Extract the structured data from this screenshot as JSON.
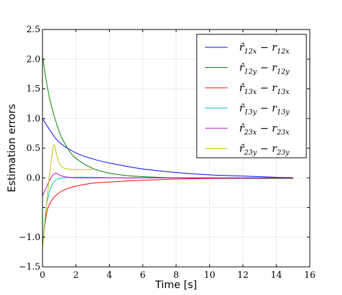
{
  "chart_data": {
    "type": "line",
    "xlabel": "Time [s]",
    "ylabel": "Estimation errors",
    "xlim": [
      0,
      16
    ],
    "ylim": [
      -1.5,
      2.5
    ],
    "xticks": [
      "0",
      "2",
      "4",
      "6",
      "8",
      "10",
      "12",
      "14",
      "16"
    ],
    "yticks": [
      "2.5",
      "2.0",
      "1.5",
      "1.0",
      "0.5",
      "0.0",
      "−1.0",
      "−1.5"
    ],
    "ytick_values": [
      2.5,
      2.0,
      1.5,
      1.0,
      0.5,
      0.0,
      -1.0,
      -1.5
    ],
    "missing_tick_note": "",
    "grid": true,
    "legend_position": "top-right",
    "series": [
      {
        "name": "r̂_{12x} − r_{12x}",
        "color": "#0000ff",
        "x": [
          0,
          0.5,
          1,
          2,
          3,
          4,
          6,
          8,
          10,
          12,
          14,
          15
        ],
        "y": [
          1.0,
          0.78,
          0.6,
          0.42,
          0.32,
          0.25,
          0.15,
          0.09,
          0.05,
          0.03,
          0.01,
          0.005
        ]
      },
      {
        "name": "r̂_{12y} − r_{12y}",
        "color": "#008000",
        "x": [
          0,
          0.25,
          0.5,
          1,
          1.5,
          2,
          3,
          4,
          5,
          6,
          8,
          10,
          12,
          15
        ],
        "y": [
          2.05,
          1.6,
          1.25,
          0.78,
          0.5,
          0.33,
          0.16,
          0.08,
          0.04,
          0.02,
          0.0,
          -0.01,
          -0.01,
          -0.01
        ]
      },
      {
        "name": "r̂_{13x} − r_{13x}",
        "color": "#ff0000",
        "x": [
          0,
          0.25,
          0.5,
          1,
          1.5,
          2,
          3,
          4,
          6,
          8,
          10,
          12,
          15
        ],
        "y": [
          -1.1,
          -0.6,
          -0.4,
          -0.25,
          -0.18,
          -0.14,
          -0.09,
          -0.07,
          -0.04,
          -0.02,
          -0.01,
          -0.005,
          0.0
        ]
      },
      {
        "name": "r̂_{13y} − r_{13y}",
        "color": "#00bfbf",
        "x": [
          0,
          0.2,
          0.4,
          0.6,
          0.8,
          1.0,
          1.3,
          1.6,
          2,
          3,
          5,
          8,
          15
        ],
        "y": [
          -1.15,
          -0.55,
          -0.25,
          -0.1,
          -0.04,
          -0.01,
          0.0,
          0.005,
          0.01,
          0.01,
          0.0,
          0.0,
          0.0
        ]
      },
      {
        "name": "r̂_{23x} − r_{23x}",
        "color": "#bf00bf",
        "x": [
          0,
          0.2,
          0.4,
          0.6,
          0.8,
          1.0,
          1.3,
          1.6,
          2,
          3,
          5,
          8,
          15
        ],
        "y": [
          -0.3,
          -0.18,
          -0.05,
          0.04,
          0.08,
          0.05,
          0.02,
          0.01,
          0.0,
          0.0,
          0.0,
          0.0,
          0.0
        ]
      },
      {
        "name": "r̂_{23y} − r_{23y}",
        "color": "#bfbf00",
        "x": [
          0,
          0.2,
          0.4,
          0.6,
          0.7,
          0.8,
          0.9,
          1.0,
          1.2,
          1.5,
          2,
          2.5,
          3
        ],
        "y": [
          -1.2,
          -0.6,
          0.0,
          0.45,
          0.56,
          0.45,
          0.33,
          0.25,
          0.18,
          0.15,
          0.14,
          0.14,
          0.14
        ]
      }
    ]
  }
}
